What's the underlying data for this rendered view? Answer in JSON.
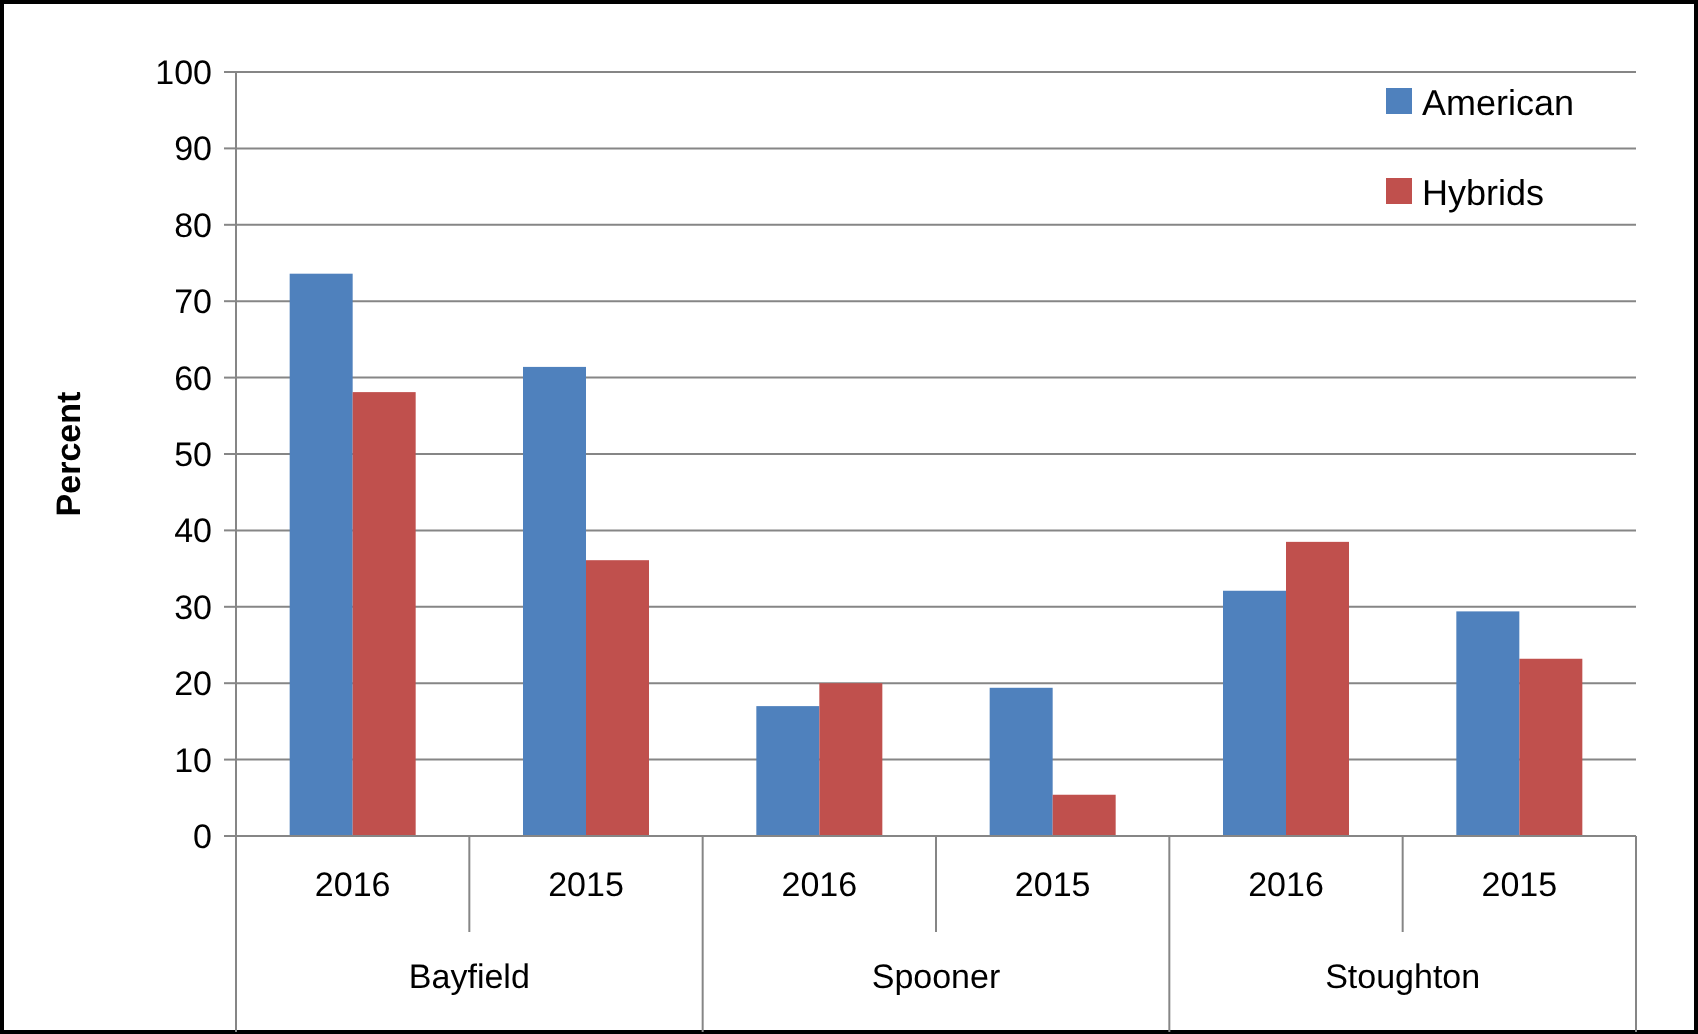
{
  "chart_data": {
    "type": "bar",
    "ylabel": "Percent",
    "categories": [
      "2016",
      "2015",
      "2016",
      "2015",
      "2016",
      "2015"
    ],
    "series": [
      {
        "name": "American",
        "color": "#4f81bd",
        "values": [
          73.6,
          61.4,
          17.0,
          19.4,
          32.1,
          29.4
        ]
      },
      {
        "name": "Hybrids",
        "color": "#c0504d",
        "values": [
          58.1,
          36.1,
          20.0,
          5.4,
          38.5,
          23.2
        ]
      }
    ],
    "ylim": [
      0,
      100
    ],
    "yticks": [
      0,
      10,
      20,
      30,
      40,
      50,
      60,
      70,
      80,
      90,
      100
    ],
    "grid": "y",
    "legend": "top right",
    "annotations": [
      "Bayfield",
      "Spooner",
      "Stoughton"
    ]
  }
}
